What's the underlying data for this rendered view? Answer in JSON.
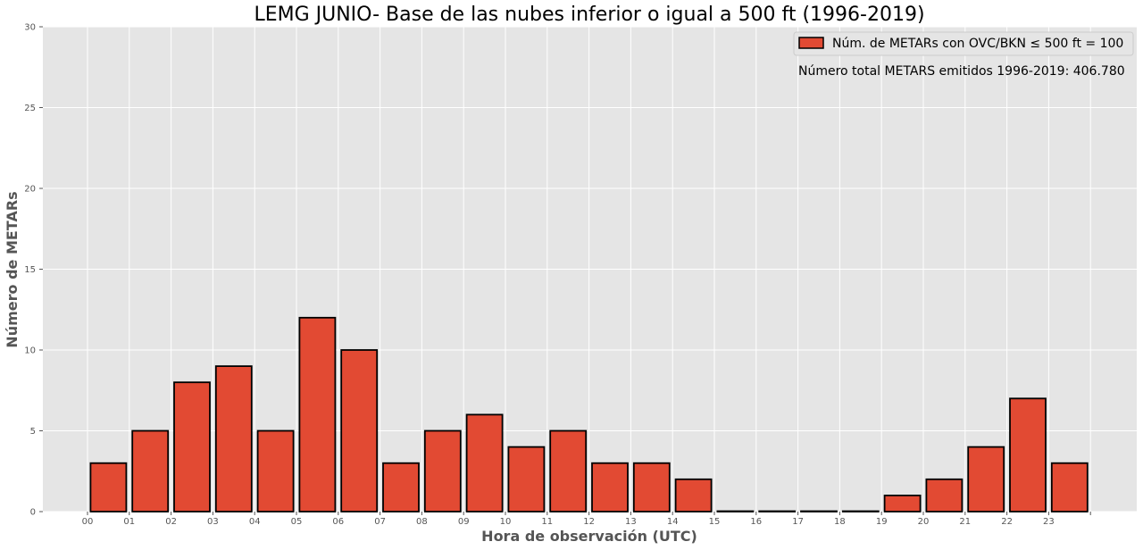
{
  "chart_data": {
    "type": "bar",
    "title": "LEMG JUNIO- Base de las nubes inferior o igual a 500 ft (1996-2019)",
    "xlabel": "Hora de observación (UTC)",
    "ylabel": "Número de METARs",
    "categories": [
      "00",
      "01",
      "02",
      "03",
      "04",
      "05",
      "06",
      "07",
      "08",
      "09",
      "10",
      "11",
      "12",
      "13",
      "14",
      "15",
      "16",
      "17",
      "18",
      "19",
      "20",
      "21",
      "22",
      "23"
    ],
    "series": [
      {
        "name": "Núm. de METARs con OVC/BKN ≤ 500 ft = 100",
        "values": [
          3,
          5,
          8,
          9,
          5,
          12,
          10,
          3,
          5,
          6,
          4,
          5,
          3,
          3,
          2,
          0,
          0,
          0,
          0,
          1,
          2,
          4,
          7,
          3
        ]
      }
    ],
    "ylim": [
      0,
      30
    ],
    "yticks": [
      0,
      5,
      10,
      15,
      20,
      25,
      30
    ],
    "annotation": "Número total METARS emitidos 1996-2019:  406.780",
    "legend": "top-right",
    "grid": true,
    "colors": {
      "bar_fill": "#E24A33",
      "bar_edge": "#000000",
      "plot_bg": "#E5E5E5",
      "grid": "#FFFFFF"
    }
  }
}
